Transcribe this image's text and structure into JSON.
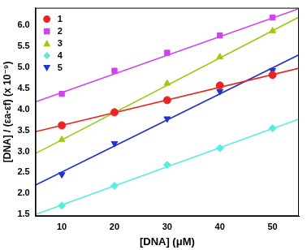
{
  "chart_data": {
    "type": "scatter",
    "x_label": "[DNA] (μM)",
    "y_label": "[DNA] / (εa-εf) (x 10⁻⁹)",
    "xlim": [
      5,
      55
    ],
    "xticks": [
      10,
      20,
      30,
      40,
      50
    ],
    "ylim": [
      1.46,
      6.42
    ],
    "yticks": [
      1.5,
      {
        "value": 2,
        "label": "2.0"
      },
      2.5,
      {
        "value": 3,
        "label": "3.0"
      },
      3.5,
      {
        "value": 4,
        "label": "4.0"
      },
      4.5,
      {
        "value": 5,
        "label": "5.0"
      },
      5.5,
      {
        "value": 6,
        "label": "6.0"
      }
    ],
    "grid": false,
    "legend": "upper left",
    "x": [
      10,
      20,
      30,
      40,
      50
    ],
    "fit_x": [
      5,
      55
    ],
    "series": [
      {
        "name": "1",
        "color": "#e8261f",
        "marker": "circle",
        "values": [
          3.62,
          3.93,
          4.22,
          4.57,
          4.82
        ],
        "fit": [
          3.47,
          4.98
        ]
      },
      {
        "name": "2",
        "color": "#cc44ee",
        "marker": "square",
        "values": [
          4.37,
          4.92,
          5.35,
          5.76,
          6.19
        ],
        "fit": [
          4.18,
          6.4
        ]
      },
      {
        "name": "3",
        "color": "#99cc11",
        "marker": "triangle-up",
        "values": [
          3.28,
          3.95,
          4.62,
          5.25,
          5.87
        ],
        "fit": [
          2.95,
          6.2
        ]
      },
      {
        "name": "4",
        "color": "#55eedd",
        "marker": "diamond",
        "values": [
          1.71,
          2.18,
          2.68,
          3.08,
          3.55
        ],
        "fit": [
          1.5,
          3.77
        ]
      },
      {
        "name": "5",
        "color": "#2233cc",
        "marker": "triangle-down",
        "values": [
          2.45,
          3.19,
          3.78,
          4.43,
          4.93
        ],
        "fit": [
          2.2,
          5.3
        ]
      }
    ]
  }
}
